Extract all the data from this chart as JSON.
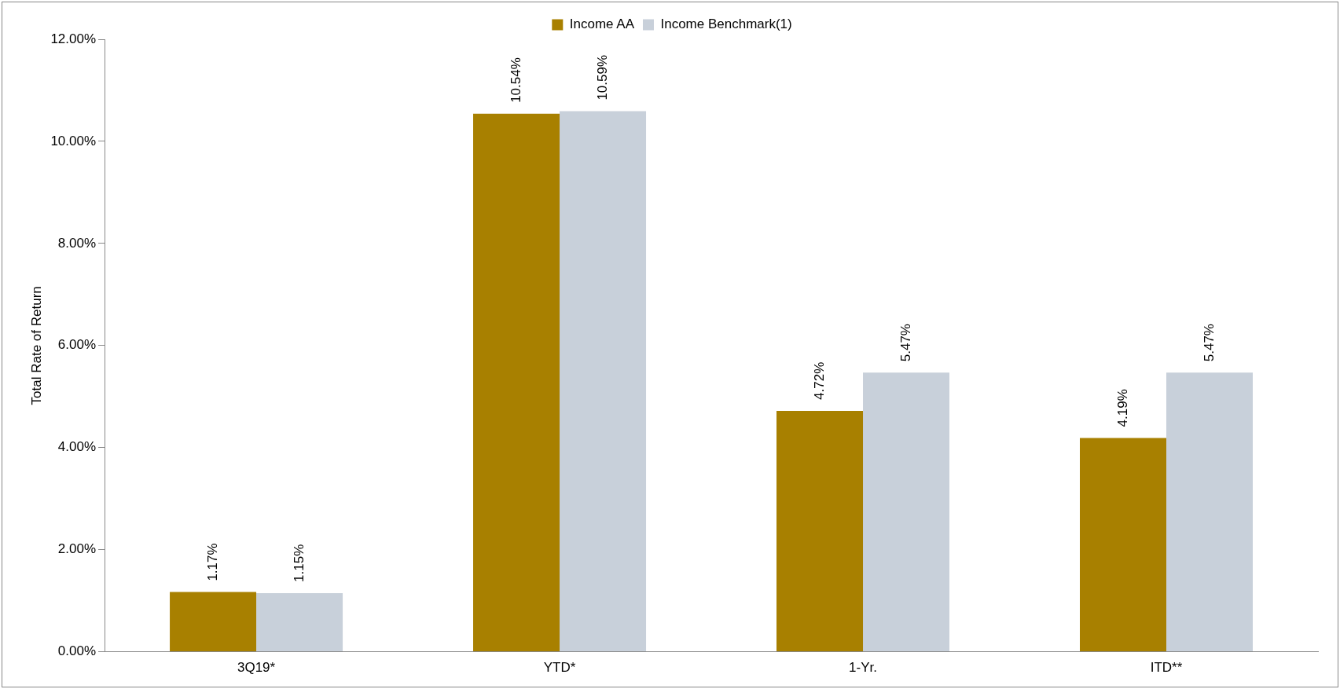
{
  "chart_data": {
    "type": "bar",
    "ylabel": "Total Rate of Return",
    "categories": [
      "3Q19*",
      "YTD*",
      "1-Yr.",
      "ITD**"
    ],
    "series": [
      {
        "name": "Income AA",
        "color": "#a88000",
        "values": [
          1.17,
          10.54,
          4.72,
          4.19
        ],
        "value_labels": [
          "1.17%",
          "10.54%",
          "4.72%",
          "4.19%"
        ]
      },
      {
        "name": "Income Benchmark(1)",
        "color": "#c8d0da",
        "values": [
          1.15,
          10.59,
          5.47,
          5.47
        ],
        "value_labels": [
          "1.15%",
          "10.59%",
          "5.47%",
          "5.47%"
        ]
      }
    ],
    "ylim": [
      0,
      12
    ],
    "yticks": [
      {
        "value": 0,
        "label": "0.00%"
      },
      {
        "value": 2,
        "label": "2.00%"
      },
      {
        "value": 4,
        "label": "4.00%"
      },
      {
        "value": 6,
        "label": "6.00%"
      },
      {
        "value": 8,
        "label": "8.00%"
      },
      {
        "value": 10,
        "label": "10.00%"
      },
      {
        "value": 12,
        "label": "12.00%"
      }
    ],
    "grid": false,
    "legend": "top"
  }
}
